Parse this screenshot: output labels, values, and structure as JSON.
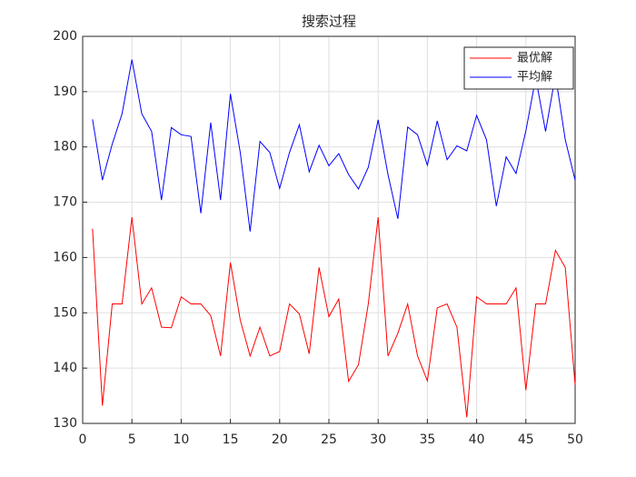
{
  "chart_data": {
    "type": "line",
    "title": "搜索过程",
    "x": [
      1,
      2,
      3,
      4,
      5,
      6,
      7,
      8,
      9,
      10,
      11,
      12,
      13,
      14,
      15,
      16,
      17,
      18,
      19,
      20,
      21,
      22,
      23,
      24,
      25,
      26,
      27,
      28,
      29,
      30,
      31,
      32,
      33,
      34,
      35,
      36,
      37,
      38,
      39,
      40,
      41,
      42,
      43,
      44,
      45,
      46,
      47,
      48,
      49,
      50
    ],
    "series": [
      {
        "name": "最优解",
        "color": "#ff0000",
        "values": [
          165.2,
          133.2,
          151.6,
          151.6,
          167.3,
          151.6,
          154.5,
          147.4,
          147.3,
          152.9,
          151.6,
          151.6,
          149.5,
          142.2,
          159.1,
          148.7,
          142.2,
          147.4,
          142.2,
          143.0,
          151.6,
          149.8,
          142.6,
          158.2,
          149.3,
          152.5,
          137.6,
          140.6,
          151.6,
          167.3,
          142.2,
          146.3,
          151.6,
          142.2,
          137.7,
          150.9,
          151.6,
          147.4,
          131.1,
          152.9,
          151.6,
          151.6,
          151.6,
          154.5,
          136.0,
          151.6,
          151.6,
          161.3,
          158.2,
          137.0
        ]
      },
      {
        "name": "平均解",
        "color": "#0000ff",
        "values": [
          185.0,
          174.0,
          180.5,
          186.0,
          195.8,
          186.0,
          182.8,
          170.4,
          183.5,
          182.2,
          181.9,
          168.0,
          184.4,
          170.4,
          189.6,
          179.0,
          164.7,
          181.0,
          179.0,
          172.5,
          179.0,
          184.0,
          175.5,
          180.3,
          176.6,
          178.8,
          175.0,
          172.4,
          176.3,
          184.9,
          175.0,
          167.0,
          183.6,
          182.2,
          176.7,
          184.7,
          177.7,
          180.2,
          179.3,
          185.7,
          181.3,
          169.3,
          178.2,
          175.2,
          182.9,
          192.5,
          182.8,
          193.0,
          181.3,
          174.0
        ]
      }
    ],
    "xlim": [
      0,
      50
    ],
    "xticks": [
      0,
      5,
      10,
      15,
      20,
      25,
      30,
      35,
      40,
      45,
      50
    ],
    "ylim": [
      130,
      200
    ],
    "yticks": [
      130,
      140,
      150,
      160,
      170,
      180,
      190,
      200
    ],
    "grid": true,
    "legend": "upper right"
  }
}
